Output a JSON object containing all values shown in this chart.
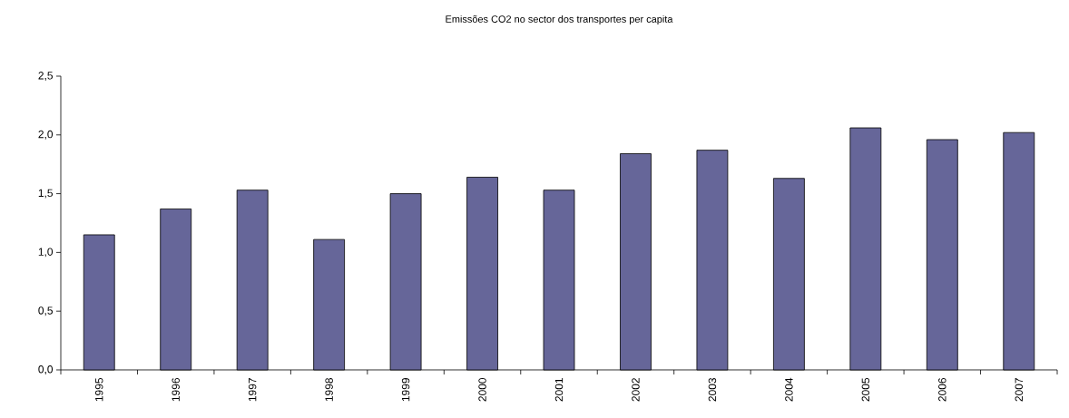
{
  "chart_data": {
    "type": "bar",
    "title": "Emissões CO2 no sector dos transportes per capita",
    "categories": [
      "1995",
      "1996",
      "1997",
      "1998",
      "1999",
      "2000",
      "2001",
      "2002",
      "2003",
      "2004",
      "2005",
      "2006",
      "2007"
    ],
    "values": [
      1.15,
      1.37,
      1.53,
      1.11,
      1.5,
      1.64,
      1.53,
      1.84,
      1.87,
      1.63,
      2.06,
      1.96,
      2.02
    ],
    "color": "#666699",
    "ylim": [
      0,
      2.5
    ],
    "yticks": [
      {
        "value": 0,
        "label": "0,0"
      },
      {
        "value": 0.5,
        "label": "0,5"
      },
      {
        "value": 1,
        "label": "1,0"
      },
      {
        "value": 1.5,
        "label": "1,5"
      },
      {
        "value": 2,
        "label": "2,0"
      },
      {
        "value": 2.5,
        "label": "2,5"
      }
    ]
  }
}
